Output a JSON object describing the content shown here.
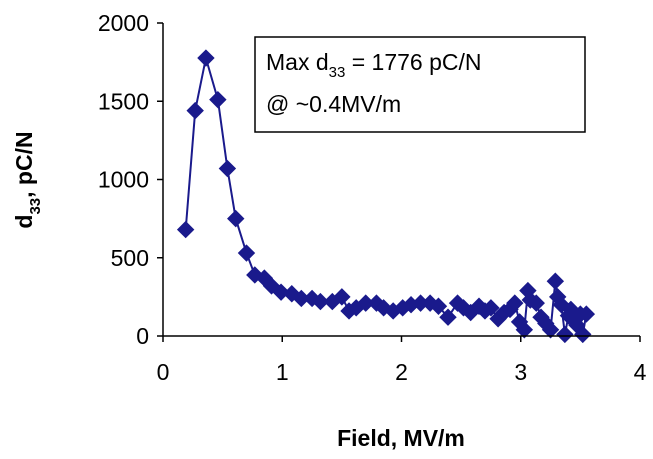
{
  "chart_data": {
    "type": "scatter",
    "xlabel": "Field, MV/m",
    "ylabel_main": "d",
    "ylabel_sub": "33",
    "ylabel_rest": ", pC/N",
    "xlim": [
      0,
      4
    ],
    "ylim": [
      0,
      2000
    ],
    "xticks": [
      "0",
      "1",
      "2",
      "3",
      "4"
    ],
    "yticks": [
      "0",
      "500",
      "1000",
      "1500",
      "2000"
    ],
    "grid": false,
    "legend": "none",
    "marker": "diamond",
    "color": "#1a1a8c",
    "annotation": {
      "line1_prefix": "Max d",
      "line1_sub": "33",
      "line1_suffix": " = 1776 pC/N",
      "line2": "@ ~0.4MV/m"
    },
    "series": [
      {
        "x": [
          0.19,
          0.27,
          0.36,
          0.46,
          0.54,
          0.61,
          0.7,
          0.77,
          0.85,
          0.91,
          0.99,
          1.08,
          1.16,
          1.25,
          1.32,
          1.42,
          1.5,
          1.56,
          1.62,
          1.7,
          1.79,
          1.85,
          1.93,
          2.01,
          2.08,
          2.16,
          2.24,
          2.31,
          2.39,
          2.47,
          2.52,
          2.58,
          2.65,
          2.7,
          2.75,
          2.81,
          2.86,
          2.91,
          2.95,
          2.99,
          3.03,
          3.06,
          3.08,
          3.13,
          3.17,
          3.21,
          3.25,
          3.29,
          3.31,
          3.34,
          3.37,
          3.4,
          3.42,
          3.45,
          3.47,
          3.5,
          3.52,
          3.55
        ],
        "y": [
          680,
          1440,
          1776,
          1510,
          1070,
          750,
          530,
          390,
          370,
          320,
          280,
          270,
          240,
          240,
          220,
          220,
          250,
          160,
          180,
          210,
          210,
          180,
          160,
          180,
          200,
          210,
          210,
          190,
          120,
          210,
          180,
          150,
          190,
          160,
          180,
          110,
          150,
          170,
          210,
          90,
          40,
          290,
          230,
          210,
          120,
          80,
          40,
          350,
          250,
          200,
          10,
          130,
          170,
          100,
          70,
          140,
          10,
          140
        ]
      }
    ]
  }
}
